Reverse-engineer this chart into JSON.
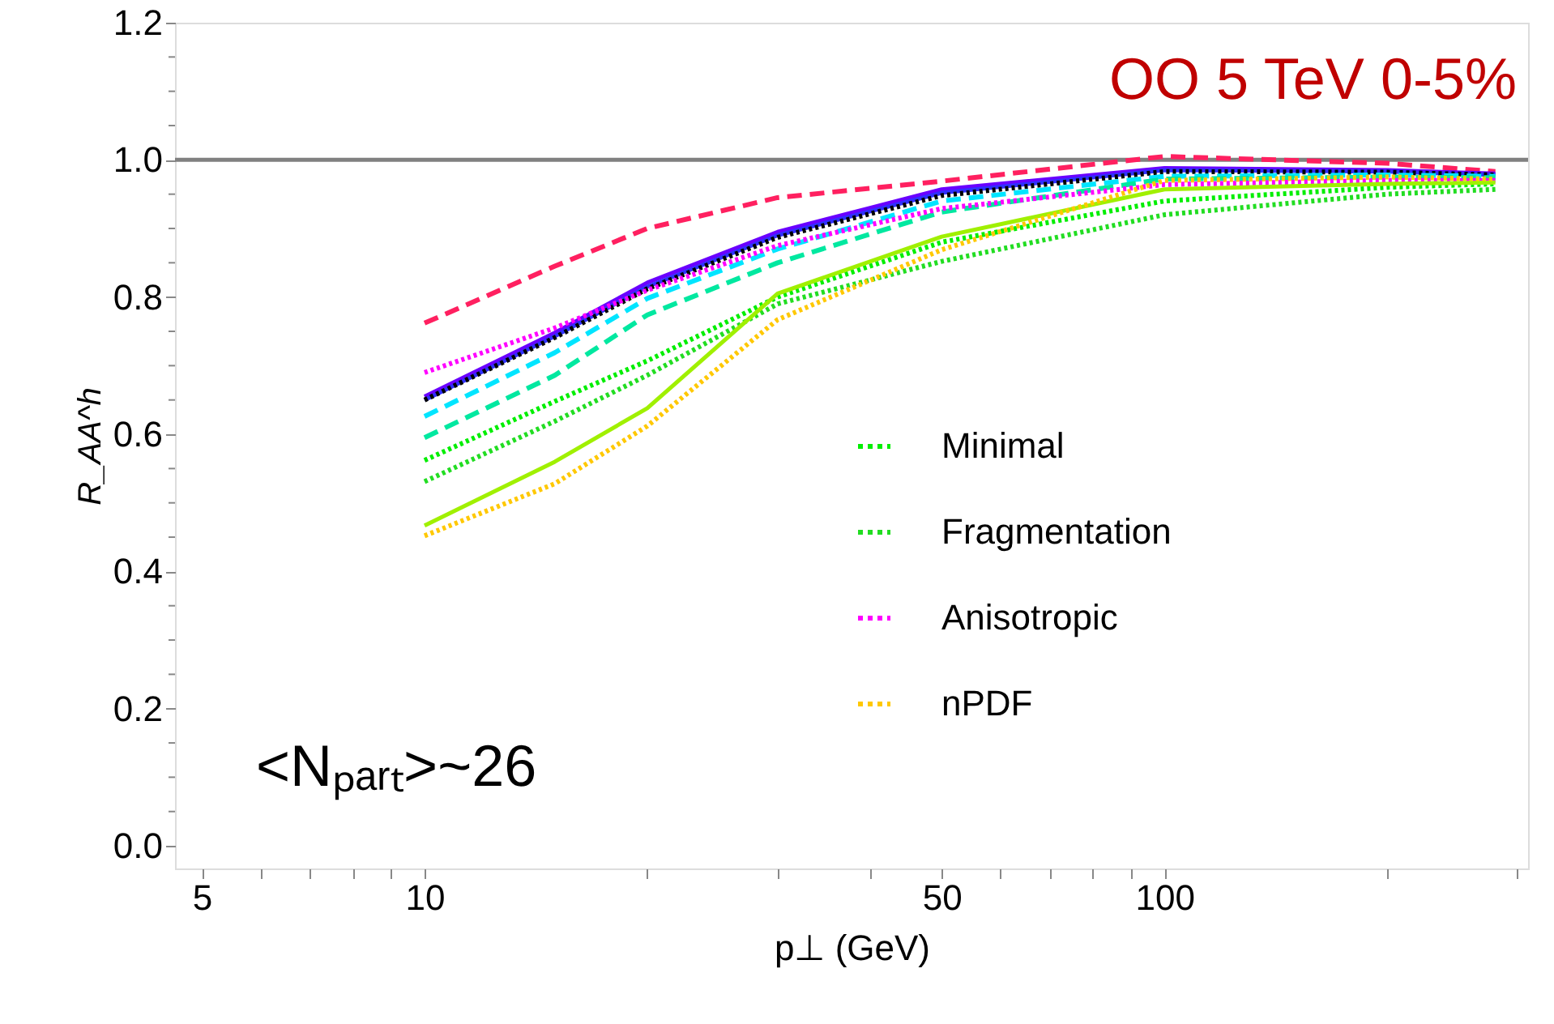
{
  "chart_data": {
    "type": "line",
    "xlabel": "p⊥ (GeV)",
    "ylabel": "R_AA^h",
    "annotations": [
      "OO 5 TeV 0-5%",
      "<Nₚₐᵣₜ>~26"
    ],
    "log": "x",
    "grid": false,
    "legend": "bottom right",
    "marker": "none",
    "xlim": [
      4.6,
      310
    ],
    "ylim": [
      -0.033,
      1.2
    ],
    "xticks": [
      5,
      {
        "value": 6,
        "label": null
      },
      {
        "value": 7,
        "label": null
      },
      {
        "value": 8,
        "label": null
      },
      {
        "value": 9,
        "label": null
      },
      10,
      {
        "value": 20,
        "label": null
      },
      {
        "value": 30,
        "label": null
      },
      {
        "value": 40,
        "label": null
      },
      50,
      {
        "value": 60,
        "label": null
      },
      {
        "value": 70,
        "label": null
      },
      {
        "value": 80,
        "label": null
      },
      {
        "value": 90,
        "label": null
      },
      100,
      {
        "value": 200,
        "label": null
      },
      {
        "value": 300,
        "label": null
      }
    ],
    "yticks": [
      {
        "value": 0,
        "label": "0.0"
      },
      {
        "value": 0.05,
        "label": null
      },
      {
        "value": 0.1,
        "label": null
      },
      {
        "value": 0.15,
        "label": null
      },
      {
        "value": 0.2,
        "label": "0.2"
      },
      {
        "value": 0.25,
        "label": null
      },
      {
        "value": 0.3,
        "label": null
      },
      {
        "value": 0.35,
        "label": null
      },
      {
        "value": 0.4,
        "label": "0.4"
      },
      {
        "value": 0.45,
        "label": null
      },
      {
        "value": 0.5,
        "label": null
      },
      {
        "value": 0.55,
        "label": null
      },
      {
        "value": 0.6,
        "label": "0.6"
      },
      {
        "value": 0.65,
        "label": null
      },
      {
        "value": 0.7,
        "label": null
      },
      {
        "value": 0.75,
        "label": null
      },
      {
        "value": 0.8,
        "label": "0.8"
      },
      {
        "value": 0.85,
        "label": null
      },
      {
        "value": 0.9,
        "label": null
      },
      {
        "value": 0.95,
        "label": null
      },
      {
        "value": 1.0,
        "label": "1.0"
      },
      {
        "value": 1.05,
        "label": null
      },
      {
        "value": 1.1,
        "label": null
      },
      {
        "value": 1.15,
        "label": null
      },
      {
        "value": 1.2,
        "label": "1.2"
      }
    ],
    "ref_lines": [
      {
        "axis": "y",
        "value": 1.0,
        "color": "#808080",
        "line_style": "solid"
      }
    ],
    "x": [
      10,
      15,
      20,
      30,
      50,
      100,
      200,
      280
    ],
    "series": [
      {
        "color": "#ff2060",
        "line_style": "dashed",
        "values": [
          0.762,
          0.845,
          0.9,
          0.945,
          0.969,
          1.005,
          0.995,
          0.983
        ]
      },
      {
        "color": "#6a00ff",
        "line_style": "solid",
        "values": [
          0.655,
          0.748,
          0.821,
          0.895,
          0.957,
          0.988,
          0.985,
          0.98
        ]
      },
      {
        "color": "#3030ff",
        "line_style": "solid",
        "values": [
          0.65,
          0.743,
          0.815,
          0.89,
          0.952,
          0.985,
          0.983,
          0.978
        ]
      },
      {
        "color": "#000000",
        "line_style": "dotted",
        "values": [
          0.65,
          0.741,
          0.812,
          0.887,
          0.948,
          0.983,
          0.982,
          0.978
        ]
      },
      {
        "color": "#00e5ff",
        "line_style": "dashed",
        "values": [
          0.626,
          0.719,
          0.798,
          0.87,
          0.94,
          0.976,
          0.978,
          0.976
        ]
      },
      {
        "color": "#00e8a0",
        "line_style": "dashed",
        "values": [
          0.595,
          0.686,
          0.774,
          0.85,
          0.924,
          0.972,
          0.975,
          0.974
        ]
      },
      {
        "name": "Minimal",
        "color": "#00ee00",
        "line_style": "dotted",
        "values": [
          0.562,
          0.648,
          0.707,
          0.8,
          0.88,
          0.94,
          0.96,
          0.965
        ]
      },
      {
        "name": "Fragmentation",
        "color": "#22dd22",
        "line_style": "dotted",
        "values": [
          0.531,
          0.619,
          0.686,
          0.79,
          0.852,
          0.92,
          0.95,
          0.957
        ]
      },
      {
        "name": "Anisotropic",
        "color": "#ff00ff",
        "line_style": "dotted",
        "values": [
          0.69,
          0.755,
          0.81,
          0.875,
          0.929,
          0.964,
          0.97,
          0.97
        ]
      },
      {
        "color": "#a0f000",
        "line_style": "solid",
        "values": [
          0.467,
          0.56,
          0.638,
          0.805,
          0.888,
          0.957,
          0.965,
          0.967
        ]
      },
      {
        "name": "nPDF",
        "color": "#ffc800",
        "line_style": "dotted",
        "values": [
          0.452,
          0.528,
          0.612,
          0.767,
          0.869,
          0.97,
          0.975,
          0.972
        ]
      }
    ]
  }
}
